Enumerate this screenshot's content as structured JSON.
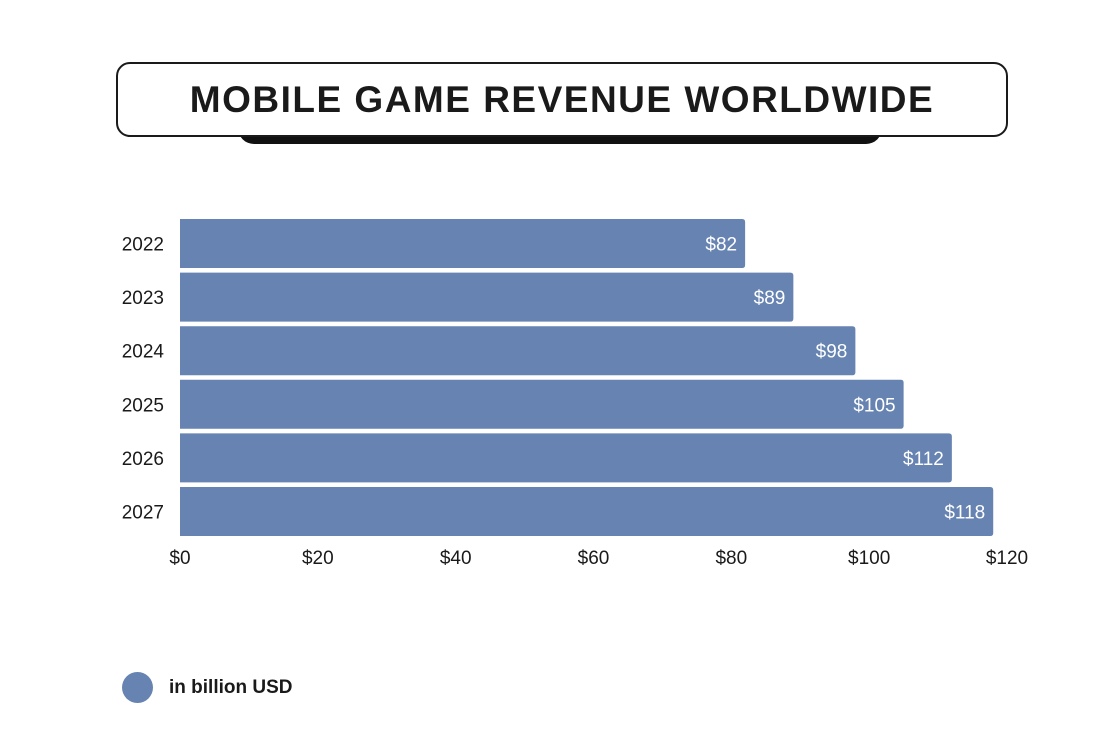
{
  "title": "MOBILE GAME REVENUE WORLDWIDE",
  "legend": {
    "label": "in billion USD",
    "color": "#6683b1"
  },
  "chart_data": {
    "type": "bar",
    "orientation": "horizontal",
    "title": "MOBILE GAME REVENUE WORLDWIDE",
    "categories": [
      "2022",
      "2023",
      "2024",
      "2025",
      "2026",
      "2027"
    ],
    "values": [
      82,
      89,
      98,
      105,
      112,
      118
    ],
    "data_labels": [
      "$82",
      "$89",
      "$98",
      "$105",
      "$112",
      "$118"
    ],
    "x_ticks": [
      "$0",
      "$20",
      "$40",
      "$60",
      "$80",
      "$100",
      "$120"
    ],
    "xlim": [
      0,
      120
    ],
    "xlabel": "",
    "ylabel": "",
    "grid": false,
    "legend_position": "bottom-left",
    "bar_color": "#6683b1"
  }
}
